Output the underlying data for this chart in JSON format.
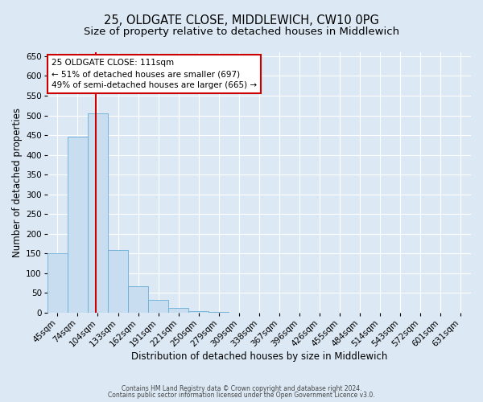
{
  "title": "25, OLDGATE CLOSE, MIDDLEWICH, CW10 0PG",
  "subtitle": "Size of property relative to detached houses in Middlewich",
  "xlabel": "Distribution of detached houses by size in Middlewich",
  "ylabel": "Number of detached properties",
  "categories": [
    "45sqm",
    "74sqm",
    "104sqm",
    "133sqm",
    "162sqm",
    "191sqm",
    "221sqm",
    "250sqm",
    "279sqm",
    "309sqm",
    "338sqm",
    "367sqm",
    "396sqm",
    "426sqm",
    "455sqm",
    "484sqm",
    "514sqm",
    "543sqm",
    "572sqm",
    "601sqm",
    "631sqm"
  ],
  "values": [
    150,
    447,
    506,
    158,
    67,
    33,
    13,
    5,
    3,
    1,
    0,
    1,
    0,
    0,
    0,
    0,
    0,
    0,
    1,
    0,
    1
  ],
  "bar_color": "#c8ddf0",
  "bar_edge_color": "#6aaed6",
  "vline_color": "#cc0000",
  "vline_x_index": 2,
  "ylim": [
    0,
    660
  ],
  "yticks": [
    0,
    50,
    100,
    150,
    200,
    250,
    300,
    350,
    400,
    450,
    500,
    550,
    600,
    650
  ],
  "annotation_title": "25 OLDGATE CLOSE: 111sqm",
  "annotation_line1": "← 51% of detached houses are smaller (697)",
  "annotation_line2": "49% of semi-detached houses are larger (665) →",
  "annotation_box_color": "#ffffff",
  "annotation_box_edge": "#cc0000",
  "plot_bg_color": "#dce9f5",
  "fig_bg_color": "#dce9f5",
  "grid_color": "#ffffff",
  "footer1": "Contains HM Land Registry data © Crown copyright and database right 2024.",
  "footer2": "Contains public sector information licensed under the Open Government Licence v3.0.",
  "title_fontsize": 10.5,
  "subtitle_fontsize": 9.5,
  "xlabel_fontsize": 8.5,
  "ylabel_fontsize": 8.5,
  "tick_fontsize": 7.5,
  "footer_fontsize": 5.5
}
